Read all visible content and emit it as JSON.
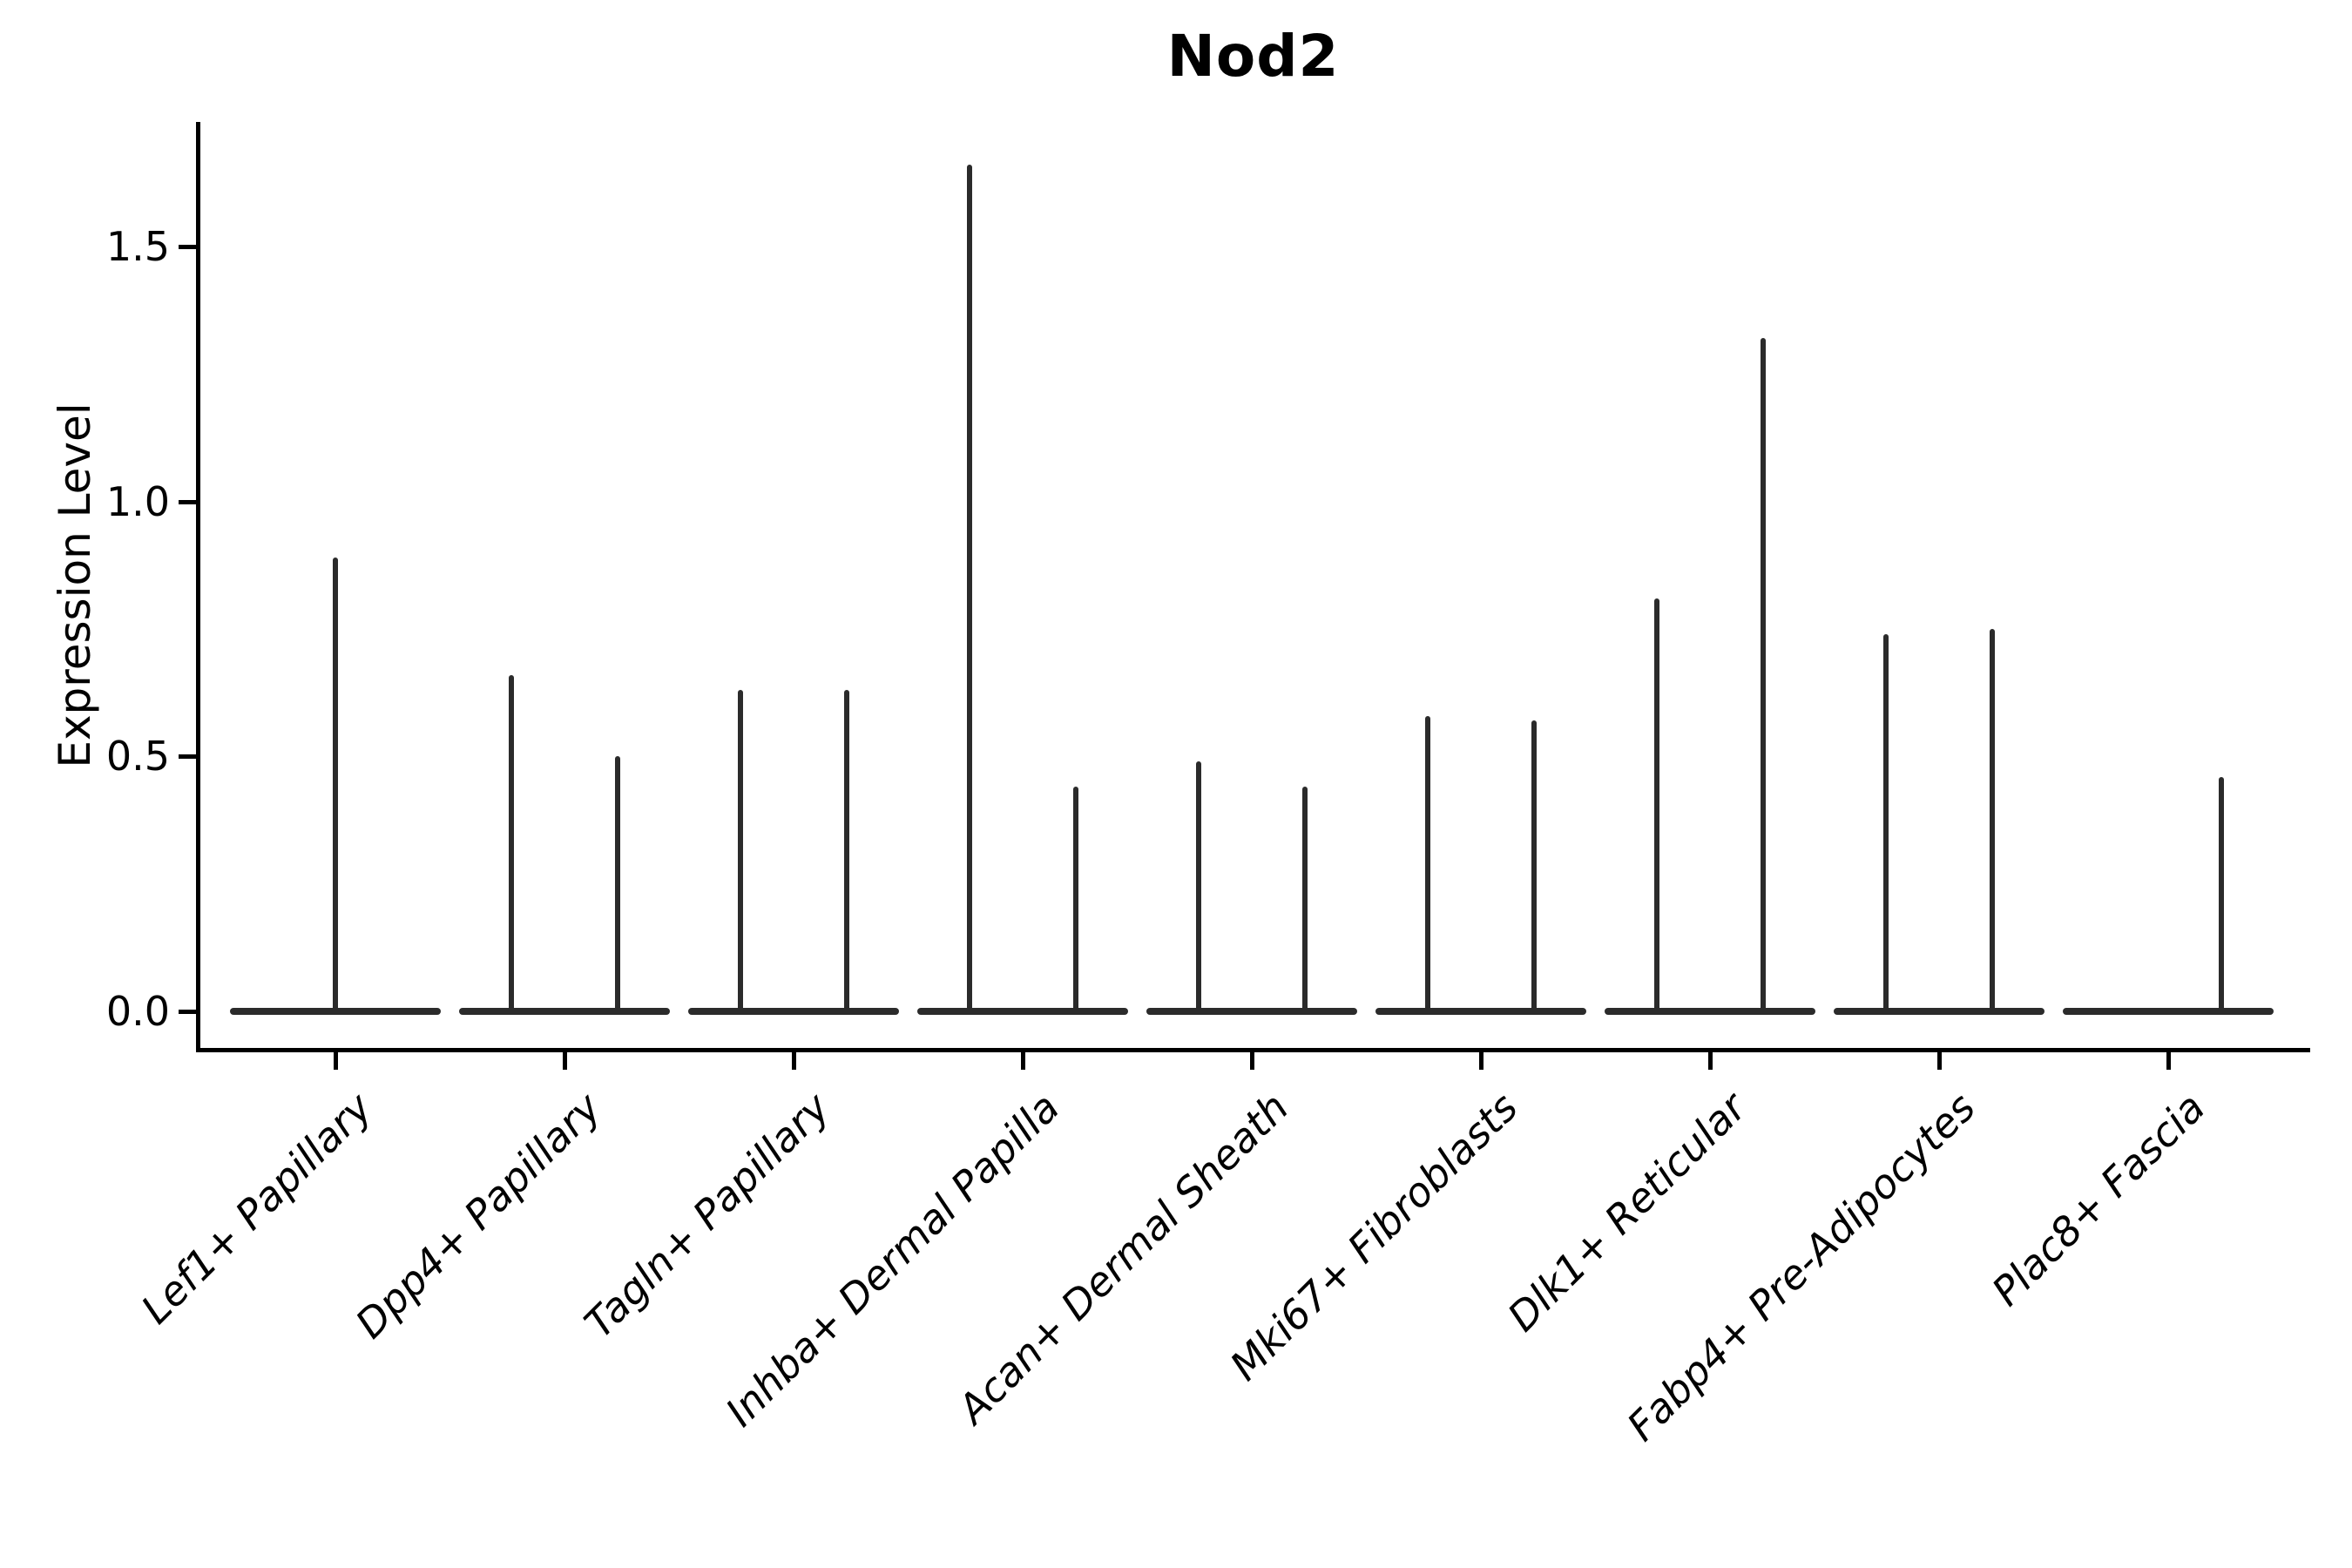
{
  "chart_data": {
    "type": "violin",
    "title": "Nod2",
    "ylabel": "Expression Level",
    "xlabel": "",
    "ylim_display": [
      -0.08,
      1.75
    ],
    "yticks": [
      0.0,
      0.5,
      1.0,
      1.5
    ],
    "ytick_labels": [
      "0.0",
      "0.5",
      "1.0",
      "1.5"
    ],
    "grid": false,
    "legend": "none",
    "x_label_rotation_deg": 45,
    "baseline_value": 0.0,
    "categories": [
      "Lef1+ Papillary",
      "Dpp4+ Papillary",
      "Tagln+ Papillary",
      "Inhba+ Dermal Papilla",
      "Acan+ Dermal Sheath",
      "Mki67+ Fibroblasts",
      "Dlk1+ Reticular",
      "Fabp4+ Pre-Adipocytes",
      "Plac8+ Fascia"
    ],
    "violins": [
      {
        "category": "Lef1+ Papillary",
        "spikes": [
          {
            "position": "center",
            "max": 0.89
          }
        ]
      },
      {
        "category": "Dpp4+ Papillary",
        "spikes": [
          {
            "position": "left",
            "max": 0.66
          },
          {
            "position": "right",
            "max": 0.5
          }
        ]
      },
      {
        "category": "Tagln+ Papillary",
        "spikes": [
          {
            "position": "left",
            "max": 0.63
          },
          {
            "position": "right",
            "max": 0.63
          }
        ]
      },
      {
        "category": "Inhba+ Dermal Papilla",
        "spikes": [
          {
            "position": "left",
            "max": 1.66
          },
          {
            "position": "right",
            "max": 0.44
          }
        ]
      },
      {
        "category": "Acan+ Dermal Sheath",
        "spikes": [
          {
            "position": "left",
            "max": 0.49
          },
          {
            "position": "right",
            "max": 0.44
          }
        ]
      },
      {
        "category": "Mki67+ Fibroblasts",
        "spikes": [
          {
            "position": "left",
            "max": 0.58
          },
          {
            "position": "right",
            "max": 0.57
          }
        ]
      },
      {
        "category": "Dlk1+ Reticular",
        "spikes": [
          {
            "position": "left",
            "max": 0.81
          },
          {
            "position": "right",
            "max": 1.32
          }
        ]
      },
      {
        "category": "Fabp4+ Pre-Adipocytes",
        "spikes": [
          {
            "position": "left",
            "max": 0.74
          },
          {
            "position": "right",
            "max": 0.75
          }
        ]
      },
      {
        "category": "Plac8+ Fascia",
        "spikes": [
          {
            "position": "right",
            "max": 0.46
          }
        ]
      }
    ]
  }
}
